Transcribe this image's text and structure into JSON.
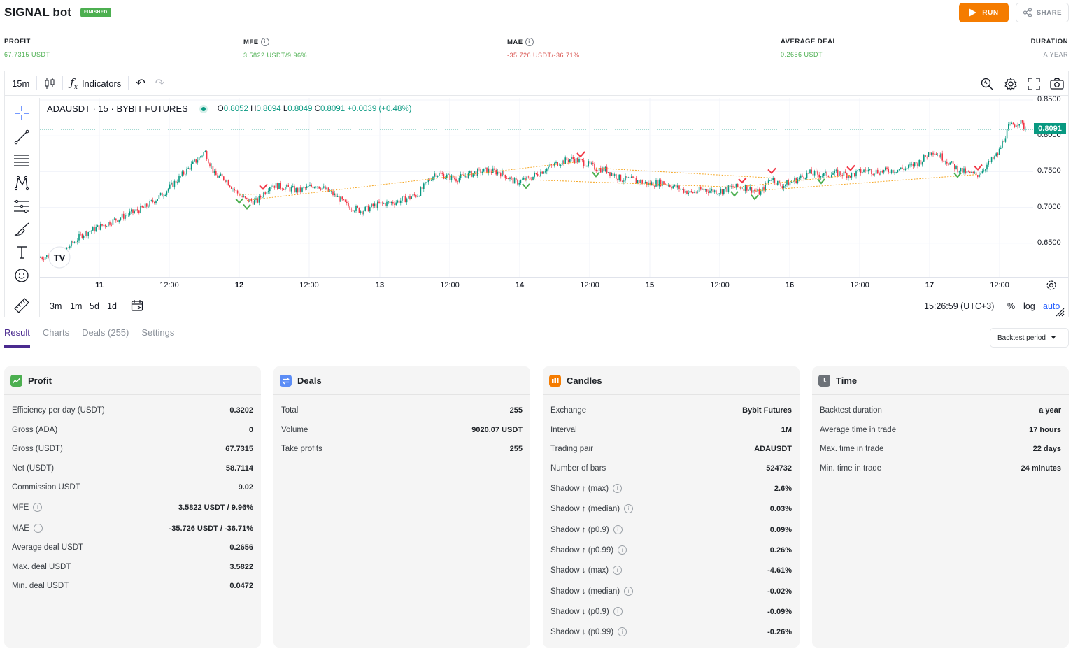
{
  "header": {
    "title": "SIGNAL bot",
    "status_badge": "FINISHED",
    "run_label": "RUN",
    "share_label": "SHARE"
  },
  "stats": [
    {
      "label": "PROFIT",
      "value": "67.7315 USDT",
      "color": "#4caf50",
      "info": false
    },
    {
      "label": "MFE",
      "value": "3.5822 USDT/9.96%",
      "color": "#4caf50",
      "info": true
    },
    {
      "label": "MAE",
      "value": "-35.726 USDT/-36.71%",
      "color": "#d9534f",
      "info": true
    },
    {
      "label": "AVERAGE DEAL",
      "value": "0.2656 USDT",
      "color": "#4caf50",
      "info": false
    },
    {
      "label": "DURATION",
      "value": "A YEAR",
      "color": "#8a9099",
      "info": false
    }
  ],
  "chart_toolbar": {
    "interval": "15m",
    "indicators_label": "Indicators"
  },
  "chart_legend": {
    "symbol": "ADAUSDT · 15 · BYBIT FUTURES",
    "o_label": "O",
    "o_value": "0.8052",
    "h_label": "H",
    "h_value": "0.8094",
    "l_label": "L",
    "l_value": "0.8049",
    "c_label": "C",
    "c_value": "0.8091",
    "change": "+0.0039 (+0.48%)"
  },
  "chart_data": {
    "type": "candlestick",
    "symbol": "ADAUSDT",
    "interval": "15",
    "exchange": "BYBIT FUTURES",
    "last_price": "0.8091",
    "y_ticks": [
      "0.8500",
      "0.8000",
      "0.7500",
      "0.7000",
      "0.6500"
    ],
    "ylim": [
      0.6,
      0.85
    ],
    "x_ticks": [
      "11",
      "12:00",
      "12",
      "12:00",
      "13",
      "12:00",
      "14",
      "12:00",
      "15",
      "12:00",
      "16",
      "12:00",
      "17",
      "12:00"
    ],
    "price_path": [
      [
        0,
        0.63
      ],
      [
        30,
        0.635
      ],
      [
        60,
        0.662
      ],
      [
        90,
        0.675
      ],
      [
        120,
        0.688
      ],
      [
        150,
        0.7
      ],
      [
        175,
        0.718
      ],
      [
        200,
        0.742
      ],
      [
        220,
        0.762
      ],
      [
        236,
        0.778
      ],
      [
        250,
        0.745
      ],
      [
        265,
        0.74
      ],
      [
        280,
        0.722
      ],
      [
        295,
        0.71
      ],
      [
        310,
        0.708
      ],
      [
        330,
        0.732
      ],
      [
        350,
        0.728
      ],
      [
        370,
        0.723
      ],
      [
        395,
        0.732
      ],
      [
        420,
        0.718
      ],
      [
        440,
        0.702
      ],
      [
        460,
        0.695
      ],
      [
        480,
        0.703
      ],
      [
        510,
        0.708
      ],
      [
        540,
        0.718
      ],
      [
        565,
        0.748
      ],
      [
        595,
        0.74
      ],
      [
        620,
        0.748
      ],
      [
        640,
        0.752
      ],
      [
        660,
        0.748
      ],
      [
        680,
        0.735
      ],
      [
        700,
        0.74
      ],
      [
        720,
        0.752
      ],
      [
        740,
        0.762
      ],
      [
        760,
        0.768
      ],
      [
        780,
        0.762
      ],
      [
        795,
        0.755
      ],
      [
        810,
        0.752
      ],
      [
        830,
        0.74
      ],
      [
        850,
        0.738
      ],
      [
        870,
        0.733
      ],
      [
        890,
        0.735
      ],
      [
        910,
        0.728
      ],
      [
        930,
        0.72
      ],
      [
        950,
        0.725
      ],
      [
        970,
        0.722
      ],
      [
        990,
        0.728
      ],
      [
        1010,
        0.728
      ],
      [
        1030,
        0.72
      ],
      [
        1045,
        0.742
      ],
      [
        1060,
        0.73
      ],
      [
        1080,
        0.738
      ],
      [
        1100,
        0.748
      ],
      [
        1120,
        0.745
      ],
      [
        1140,
        0.748
      ],
      [
        1160,
        0.745
      ],
      [
        1180,
        0.752
      ],
      [
        1200,
        0.75
      ],
      [
        1220,
        0.752
      ],
      [
        1240,
        0.755
      ],
      [
        1260,
        0.765
      ],
      [
        1275,
        0.78
      ],
      [
        1290,
        0.77
      ],
      [
        1310,
        0.755
      ],
      [
        1325,
        0.748
      ],
      [
        1340,
        0.745
      ],
      [
        1355,
        0.76
      ],
      [
        1370,
        0.775
      ],
      [
        1385,
        0.812
      ],
      [
        1400,
        0.82
      ],
      [
        1410,
        0.809
      ]
    ],
    "buy_markers_x": [
      285,
      296,
      695,
      795,
      993,
      1022,
      1117,
      1312
    ],
    "sell_markers_x": [
      319,
      773,
      1004,
      1046,
      1159,
      1341
    ]
  },
  "chart_bottom": {
    "ranges": [
      "3m",
      "1m",
      "5d",
      "1d"
    ],
    "time": "15:26:59 (UTC+3)",
    "pct": "%",
    "log": "log",
    "auto": "auto"
  },
  "tabs": [
    "Result",
    "Charts",
    "Deals (255)",
    "Settings"
  ],
  "period_select": "Backtest period",
  "cards": {
    "profit": {
      "title": "Profit",
      "rows": [
        {
          "k": "Efficiency per day (USDT)",
          "v": "0.3202"
        },
        {
          "k": "Gross (ADA)",
          "v": "0"
        },
        {
          "k": "Gross (USDT)",
          "v": "67.7315"
        },
        {
          "k": "Net (USDT)",
          "v": "58.7114"
        },
        {
          "k": "Commission USDT",
          "v": "9.02"
        },
        {
          "k": "MFE",
          "v": "3.5822 USDT / 9.96%"
        },
        {
          "k": "MAE",
          "v": "-35.726 USDT / -36.71%"
        },
        {
          "k": "Average deal USDT",
          "v": "0.2656"
        },
        {
          "k": "Max. deal USDT",
          "v": "3.5822"
        },
        {
          "k": "Min. deal USDT",
          "v": "0.0472"
        }
      ]
    },
    "deals": {
      "title": "Deals",
      "rows": [
        {
          "k": "Total",
          "v": "255"
        },
        {
          "k": "Volume",
          "v": "9020.07 USDT"
        },
        {
          "k": "Take profits",
          "v": "255"
        }
      ]
    },
    "candles": {
      "title": "Candles",
      "rows": [
        {
          "k": "Exchange",
          "v": "Bybit Futures"
        },
        {
          "k": "Interval",
          "v": "1M"
        },
        {
          "k": "Trading pair",
          "v": "ADAUSDT"
        },
        {
          "k": "Number of bars",
          "v": "524732"
        },
        {
          "k": "Shadow ↑ (max)",
          "v": "2.6%"
        },
        {
          "k": "Shadow ↑ (median)",
          "v": "0.03%"
        },
        {
          "k": "Shadow ↑ (p0.9)",
          "v": "0.09%"
        },
        {
          "k": "Shadow ↑ (p0.99)",
          "v": "0.26%"
        },
        {
          "k": "Shadow ↓ (max)",
          "v": "-4.61%"
        },
        {
          "k": "Shadow ↓ (median)",
          "v": "-0.02%"
        },
        {
          "k": "Shadow ↓ (p0.9)",
          "v": "-0.09%"
        },
        {
          "k": "Shadow ↓ (p0.99)",
          "v": "-0.26%"
        }
      ]
    },
    "time": {
      "title": "Time",
      "rows": [
        {
          "k": "Backtest duration",
          "v": "a year"
        },
        {
          "k": "Average time in trade",
          "v": "17 hours"
        },
        {
          "k": "Max. time in trade",
          "v": "22 days"
        },
        {
          "k": "Min. time in trade",
          "v": "24 minutes"
        }
      ]
    }
  }
}
